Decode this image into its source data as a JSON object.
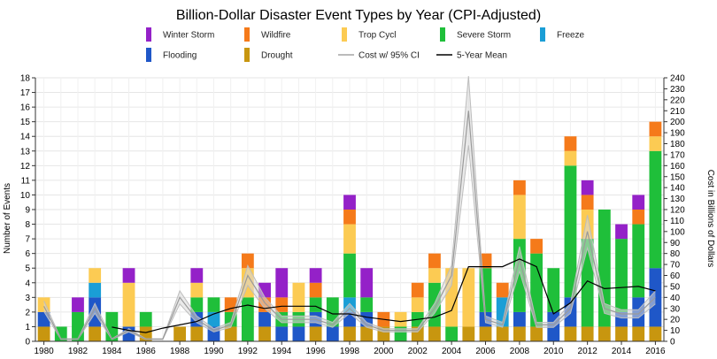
{
  "chart_data": {
    "type": "bar",
    "title": "Billion-Dollar Disaster Event Types by Year (CPI-Adjusted)",
    "ylabel": "Number of Events",
    "y2label": "Cost in Billions of Dollars",
    "ylim": [
      0,
      18
    ],
    "y2lim": [
      0,
      240
    ],
    "grid": true,
    "legend_position": "top",
    "years": [
      1980,
      1981,
      1982,
      1983,
      1984,
      1985,
      1986,
      1987,
      1988,
      1989,
      1990,
      1991,
      1992,
      1993,
      1994,
      1995,
      1996,
      1997,
      1998,
      1999,
      2000,
      2001,
      2002,
      2003,
      2004,
      2005,
      2006,
      2007,
      2008,
      2009,
      2010,
      2011,
      2012,
      2013,
      2014,
      2015,
      2016
    ],
    "x_tick_labels": [
      "1980",
      "1982",
      "1984",
      "1986",
      "1988",
      "1990",
      "1992",
      "1994",
      "1996",
      "1998",
      "2000",
      "2002",
      "2004",
      "2006",
      "2008",
      "2010",
      "2012",
      "2014",
      "2016"
    ],
    "y_tick_labels": [
      "0",
      "1",
      "2",
      "3",
      "4",
      "5",
      "6",
      "7",
      "8",
      "9",
      "10",
      "11",
      "12",
      "13",
      "14",
      "15",
      "16",
      "17",
      "18"
    ],
    "y2_tick_labels": [
      "0",
      "10",
      "20",
      "30",
      "40",
      "50",
      "60",
      "70",
      "80",
      "90",
      "100",
      "110",
      "120",
      "130",
      "140",
      "150",
      "160",
      "170",
      "180",
      "190",
      "200",
      "210",
      "220",
      "230",
      "240"
    ],
    "series": [
      {
        "name": "Drought",
        "color": "#c8960f",
        "values": [
          1,
          0,
          0,
          1,
          0,
          0,
          1,
          0,
          1,
          1,
          0,
          1,
          0,
          1,
          0,
          0,
          1,
          0,
          1,
          1,
          1,
          0,
          1,
          1,
          0,
          1,
          1,
          1,
          1,
          1,
          0,
          1,
          1,
          1,
          1,
          1,
          1
        ]
      },
      {
        "name": "Flooding",
        "color": "#1f57c8",
        "values": [
          1,
          0,
          0,
          2,
          0,
          1,
          0,
          0,
          0,
          1,
          1,
          0,
          0,
          1,
          1,
          1,
          1,
          1,
          1,
          1,
          0,
          0,
          0,
          0,
          0,
          0,
          1,
          0,
          1,
          0,
          2,
          2,
          0,
          0,
          1,
          2,
          4
        ]
      },
      {
        "name": "Freeze",
        "color": "#1a9ed6",
        "values": [
          0,
          0,
          0,
          1,
          0,
          0,
          0,
          0,
          0,
          0,
          1,
          0,
          0,
          0,
          0,
          0,
          0,
          0,
          1,
          0,
          0,
          0,
          0,
          0,
          0,
          0,
          0,
          2,
          0,
          0,
          0,
          0,
          0,
          0,
          0,
          0,
          0
        ]
      },
      {
        "name": "Severe Storm",
        "color": "#1fbf3a",
        "values": [
          0,
          1,
          2,
          0,
          2,
          0,
          1,
          0,
          0,
          1,
          1,
          1,
          3,
          0,
          1,
          1,
          1,
          2,
          3,
          1,
          0,
          1,
          1,
          3,
          1,
          0,
          3,
          0,
          5,
          5,
          3,
          9,
          6,
          8,
          5,
          5,
          8
        ]
      },
      {
        "name": "Trop Cycl",
        "color": "#fccb53",
        "values": [
          1,
          0,
          0,
          1,
          0,
          3,
          0,
          0,
          0,
          1,
          0,
          0,
          2,
          0,
          0,
          2,
          0,
          0,
          2,
          0,
          0,
          1,
          1,
          1,
          4,
          4,
          0,
          0,
          3,
          0,
          0,
          1,
          2,
          0,
          0,
          0,
          1
        ]
      },
      {
        "name": "Wildfire",
        "color": "#f57a1a",
        "values": [
          0,
          0,
          0,
          0,
          0,
          0,
          0,
          0,
          0,
          0,
          0,
          1,
          1,
          1,
          1,
          0,
          1,
          0,
          1,
          0,
          1,
          0,
          1,
          1,
          0,
          0,
          1,
          1,
          1,
          1,
          0,
          1,
          1,
          0,
          0,
          1,
          1
        ]
      },
      {
        "name": "Winter Storm",
        "color": "#9421c8",
        "values": [
          0,
          0,
          1,
          0,
          0,
          1,
          0,
          0,
          0,
          1,
          0,
          0,
          0,
          1,
          2,
          0,
          1,
          0,
          1,
          2,
          0,
          0,
          0,
          0,
          0,
          0,
          0,
          0,
          0,
          0,
          0,
          0,
          1,
          0,
          1,
          1,
          0
        ]
      }
    ],
    "legend_order": [
      "Winter Storm",
      "Wildfire",
      "Trop Cycl",
      "Severe Storm",
      "Freeze",
      "Flooding",
      "Drought",
      "Cost w/ 95% CI",
      "5-Year Mean"
    ],
    "line_series": [
      {
        "name": "Cost w/ 95% CI",
        "color": "#bbbbbb",
        "axis": "right",
        "values": [
          32,
          2,
          2,
          30,
          2,
          10,
          2,
          2,
          40,
          20,
          10,
          15,
          60,
          35,
          20,
          20,
          20,
          15,
          30,
          15,
          10,
          10,
          10,
          30,
          60,
          210,
          20,
          15,
          75,
          15,
          15,
          30,
          100,
          30,
          25,
          25,
          40
        ]
      },
      {
        "name": "5-Year Mean",
        "color": "#000000",
        "axis": "right",
        "values": [
          null,
          null,
          null,
          null,
          13,
          10,
          8,
          12,
          15,
          18,
          25,
          30,
          33,
          30,
          32,
          32,
          32,
          25,
          25,
          22,
          20,
          18,
          20,
          22,
          28,
          68,
          68,
          68,
          75,
          68,
          25,
          35,
          55,
          48,
          49,
          50,
          46
        ]
      }
    ]
  }
}
